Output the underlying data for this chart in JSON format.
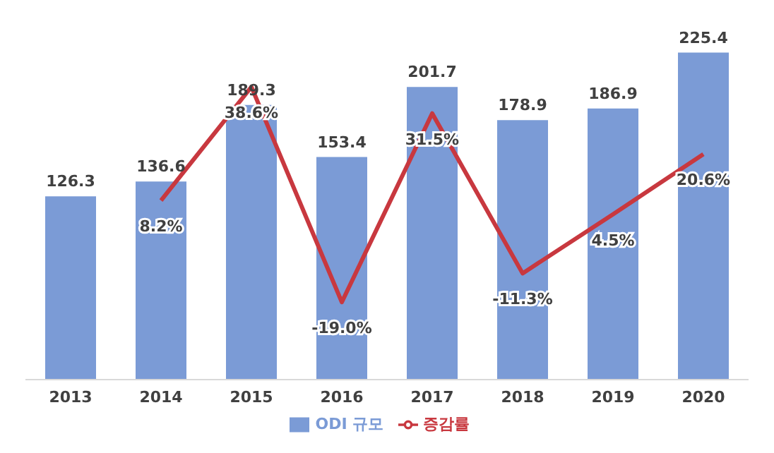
{
  "chart_data": {
    "type": "bar",
    "categories": [
      "2013",
      "2014",
      "2015",
      "2016",
      "2017",
      "2018",
      "2019",
      "2020"
    ],
    "series": [
      {
        "name": "ODI 규모",
        "color": "#7b9bd6",
        "values": [
          126.3,
          136.6,
          189.3,
          153.4,
          201.7,
          178.9,
          186.9,
          225.4
        ],
        "value_labels": [
          "126.3",
          "136.6",
          "189.3",
          "153.4",
          "201.7",
          "178.9",
          "186.9",
          "225.4"
        ]
      },
      {
        "name": "증감률",
        "type": "line",
        "axis": "y2",
        "color": "#c8383f",
        "values": [
          null,
          8.2,
          38.6,
          -19.0,
          31.5,
          -11.3,
          4.5,
          20.6
        ],
        "value_labels": [
          null,
          "8.2%",
          "38.6%",
          "-19.0%",
          "31.5%",
          "-11.3%",
          "4.5%",
          "20.6%"
        ]
      }
    ],
    "tick_labels": "x",
    "grid": false,
    "legend": "bottom",
    "marker": "none"
  }
}
